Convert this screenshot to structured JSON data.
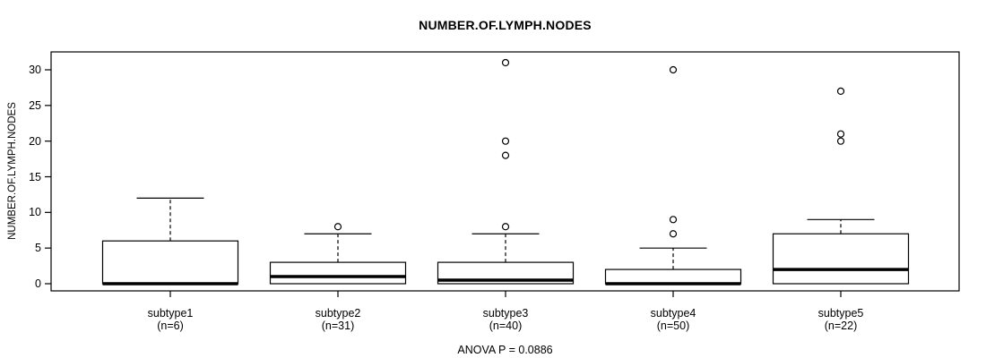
{
  "title": "NUMBER.OF.LYMPH.NODES",
  "footer": "ANOVA P = 0.0886",
  "colors": {
    "foreground": "#000000",
    "box_fill": "#ffffff",
    "background": "#ffffff"
  },
  "chart_data": {
    "type": "boxplot",
    "title": "NUMBER.OF.LYMPH.NODES",
    "xlabel": "",
    "ylabel": "NUMBER.OF.LYMPH.NODES",
    "annotation": "ANOVA P = 0.0886",
    "ylim": [
      -1,
      32.5
    ],
    "yticks": [
      0,
      5,
      10,
      15,
      20,
      25,
      30
    ],
    "grid": false,
    "legend": "none",
    "groups": [
      {
        "label": "subtype1",
        "sublabel": "(n=6)",
        "n": 6,
        "min": 0,
        "q1": 0,
        "median": 0,
        "q3": 6,
        "whisker_high": 12,
        "outliers": []
      },
      {
        "label": "subtype2",
        "sublabel": "(n=31)",
        "n": 31,
        "min": 0,
        "q1": 0,
        "median": 1,
        "q3": 3,
        "whisker_high": 7,
        "outliers": [
          8
        ]
      },
      {
        "label": "subtype3",
        "sublabel": "(n=40)",
        "n": 40,
        "min": 0,
        "q1": 0,
        "median": 0.5,
        "q3": 3,
        "whisker_high": 7,
        "outliers": [
          8,
          18,
          20,
          31
        ]
      },
      {
        "label": "subtype4",
        "sublabel": "(n=50)",
        "n": 50,
        "min": 0,
        "q1": 0,
        "median": 0,
        "q3": 2,
        "whisker_high": 5,
        "outliers": [
          7,
          9,
          30
        ]
      },
      {
        "label": "subtype5",
        "sublabel": "(n=22)",
        "n": 22,
        "min": 0,
        "q1": 0,
        "median": 2,
        "q3": 7,
        "whisker_high": 9,
        "outliers": [
          20,
          21,
          27
        ]
      }
    ]
  }
}
